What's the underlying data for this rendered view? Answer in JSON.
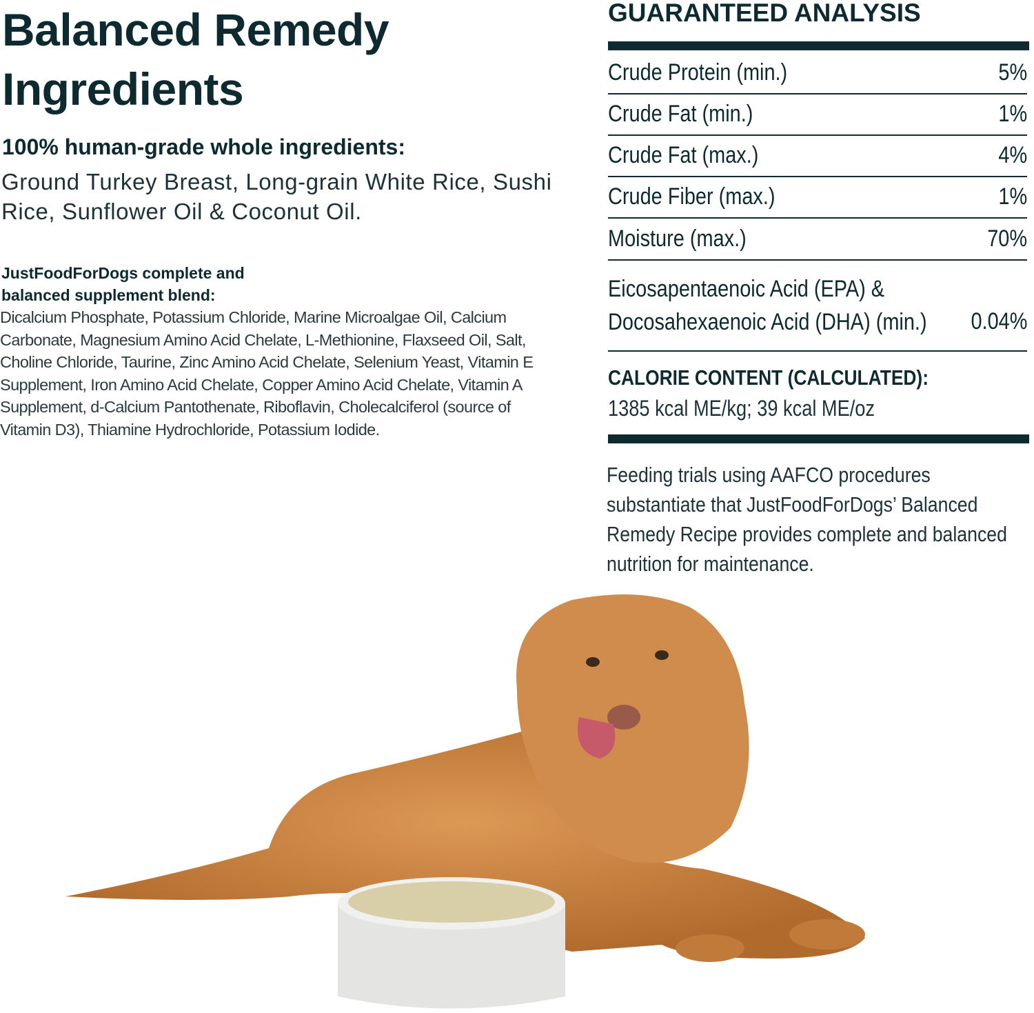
{
  "ingredients": {
    "title": "Balanced Remedy Ingredients",
    "subheading": "100% human-grade whole ingredients:",
    "list": "Ground Turkey Breast, Long-grain White Rice, Sushi Rice, Sunflower Oil & Coconut Oil.",
    "supplement_heading": "JustFoodForDogs complete and balanced supplement blend:",
    "supplement_list": "Dicalcium Phosphate, Potassium Chloride, Marine Microalgae Oil, Calcium Carbonate, Magnesium Amino Acid Chelate, L-Methionine, Flaxseed Oil, Salt,  Choline Chloride, Taurine,  Zinc Amino Acid Chelate, Selenium Yeast, Vitamin E Supplement, Iron Amino Acid Chelate, Copper Amino Acid Chelate, Vitamin A Supplement, d-Calcium Pantothenate, Riboflavin, Cholecalciferol (source of Vitamin D3), Thiamine Hydrochloride, Potassium Iodide."
  },
  "analysis": {
    "title": "GUARANTEED ANALYSIS",
    "rows": [
      {
        "label": "Crude Protein (min.)",
        "value": "5%"
      },
      {
        "label": "Crude Fat (min.)",
        "value": "1%"
      },
      {
        "label": "Crude  Fat (max.)",
        "value": "4%"
      },
      {
        "label": "Crude Fiber (max.)",
        "value": "1%"
      },
      {
        "label": "Moisture (max.)",
        "value": "70%"
      }
    ],
    "epa_line1": "Eicosapentaenoic Acid (EPA) &",
    "epa_line2": "Docosahexaenoic Acid (DHA) (min.)",
    "epa_value": "0.04%",
    "calorie_heading": "CALORIE CONTENT (CALCULATED):",
    "calorie_value": "1385 kcal ME/kg; 39 kcal ME/oz",
    "feeding_statement": "Feeding trials using AAFCO procedures substantiate that JustFoodForDogs’ Balanced Remedy Recipe provides complete and balanced nutrition for maintenance."
  },
  "colors": {
    "text": "#0d2a30",
    "dog_fur": "#c9803f",
    "bowl": "#e4e4e2"
  }
}
